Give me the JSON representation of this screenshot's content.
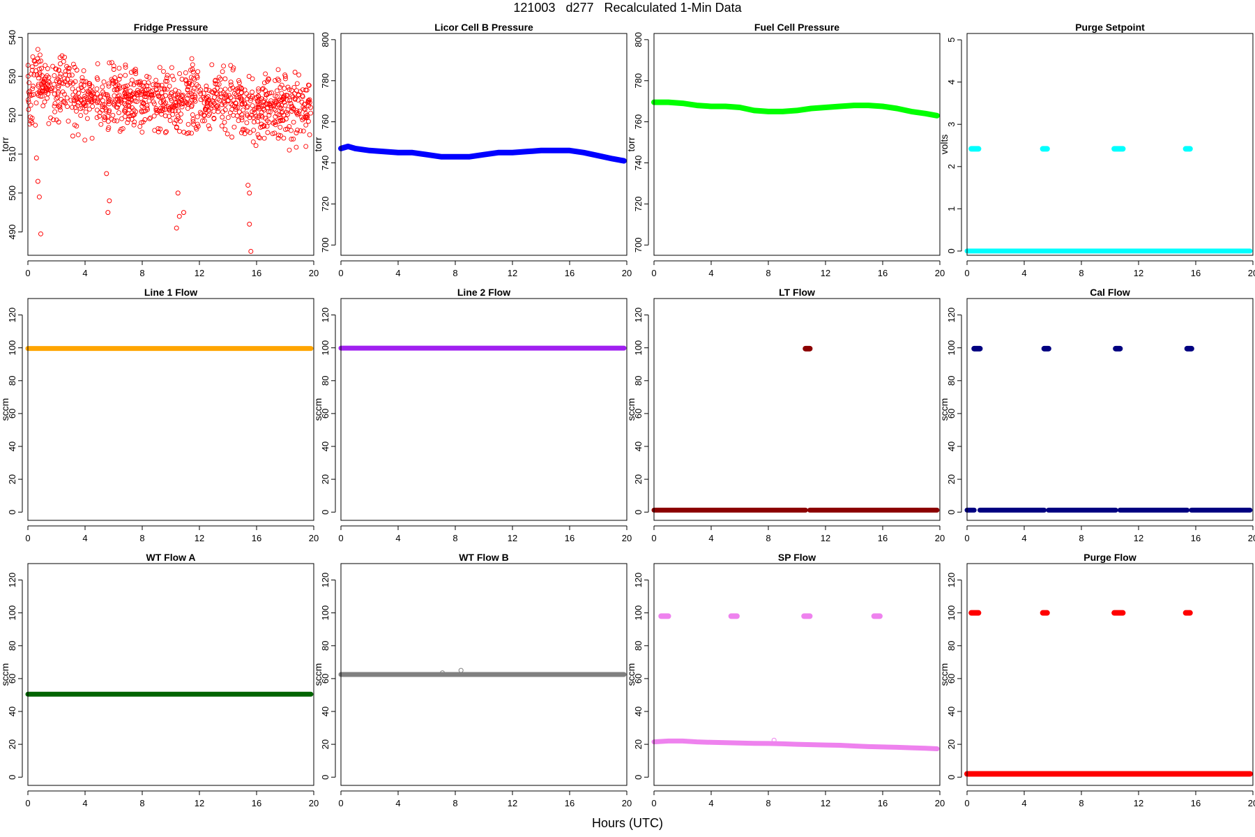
{
  "figure": {
    "title": "121003   d277   Recalculated 1-Min Data",
    "xlabel": "Hours (UTC)"
  },
  "chart_data": [
    {
      "type": "scatter",
      "title": "Fridge Pressure",
      "ylabel": "torr",
      "color": "#ff0000",
      "marker": "open",
      "xlim": [
        0,
        20
      ],
      "ylim": [
        484,
        541
      ],
      "xticks": [
        0,
        4,
        8,
        12,
        16,
        20
      ],
      "yticks": [
        490,
        500,
        510,
        520,
        530,
        540
      ],
      "series": [
        {
          "pattern": "noise",
          "x": [
            0,
            19.8
          ],
          "center": 524,
          "spread": 5,
          "seed": 11,
          "count": 1000
        },
        {
          "pattern": "points",
          "values": [
            [
              0.6,
              509
            ],
            [
              0.7,
              503
            ],
            [
              0.8,
              499
            ],
            [
              0.9,
              489.5
            ],
            [
              5.6,
              495
            ],
            [
              5.7,
              498
            ],
            [
              5.5,
              505
            ],
            [
              10.4,
              491
            ],
            [
              10.6,
              494
            ],
            [
              10.9,
              495
            ],
            [
              10.5,
              500
            ],
            [
              15.4,
              502
            ],
            [
              15.5,
              492
            ],
            [
              15.6,
              485
            ],
            [
              15.5,
              500
            ]
          ]
        }
      ]
    },
    {
      "type": "scatter",
      "title": "Licor Cell B Pressure",
      "ylabel": "torr",
      "color": "#0000ff",
      "marker": "filled",
      "xlim": [
        0,
        20
      ],
      "ylim": [
        695,
        803
      ],
      "xticks": [
        0,
        4,
        8,
        12,
        16,
        20
      ],
      "yticks": [
        700,
        720,
        740,
        760,
        780,
        800
      ],
      "series": [
        {
          "pattern": "line",
          "x": [
            0,
            0.5,
            1,
            2,
            3,
            4,
            5,
            6,
            7,
            8,
            9,
            10,
            11,
            12,
            13,
            14,
            15,
            16,
            17,
            18,
            19,
            19.8
          ],
          "y": [
            747,
            748,
            747,
            746,
            745.5,
            745,
            745,
            744,
            743,
            743,
            743,
            744,
            745,
            745,
            745.5,
            746,
            746,
            746,
            745,
            743.5,
            742,
            741
          ],
          "width": 8
        }
      ]
    },
    {
      "type": "scatter",
      "title": "Fuel Cell Pressure",
      "ylabel": "torr",
      "color": "#00ff00",
      "marker": "filled",
      "xlim": [
        0,
        20
      ],
      "ylim": [
        695,
        803
      ],
      "xticks": [
        0,
        4,
        8,
        12,
        16,
        20
      ],
      "yticks": [
        700,
        720,
        740,
        760,
        780,
        800
      ],
      "series": [
        {
          "pattern": "line",
          "x": [
            0,
            1,
            2,
            3,
            4,
            5,
            6,
            7,
            8,
            9,
            10,
            11,
            12,
            13,
            14,
            15,
            16,
            17,
            18,
            19,
            19.8
          ],
          "y": [
            769.5,
            769.5,
            769,
            768,
            767.5,
            767.5,
            767,
            765.5,
            765,
            765,
            765.5,
            766.5,
            767,
            767.5,
            768,
            768,
            767.5,
            766.5,
            765,
            764,
            763
          ],
          "width": 8
        }
      ]
    },
    {
      "type": "scatter",
      "title": "Purge Setpoint",
      "ylabel": "volts",
      "color": "#00ffff",
      "marker": "filled",
      "xlim": [
        0,
        20
      ],
      "ylim": [
        -0.1,
        5.15
      ],
      "xticks": [
        0,
        4,
        8,
        12,
        16,
        20
      ],
      "yticks": [
        0,
        1,
        2,
        3,
        4,
        5
      ],
      "series": [
        {
          "pattern": "line",
          "x": [
            0,
            19.8
          ],
          "y": [
            0,
            0
          ],
          "width": 7
        },
        {
          "pattern": "segments",
          "segs": [
            [
              0.3,
              0.8,
              2.42
            ],
            [
              5.3,
              5.6,
              2.42
            ],
            [
              10.3,
              10.9,
              2.42
            ],
            [
              15.3,
              15.6,
              2.42
            ]
          ],
          "width": 8
        }
      ]
    },
    {
      "type": "scatter",
      "title": "Line 1 Flow",
      "ylabel": "sccm",
      "color": "#ffa500",
      "marker": "filled",
      "xlim": [
        0,
        20
      ],
      "ylim": [
        -5,
        130
      ],
      "xticks": [
        0,
        4,
        8,
        12,
        16,
        20
      ],
      "yticks": [
        0,
        20,
        40,
        60,
        80,
        100,
        120
      ],
      "series": [
        {
          "pattern": "line",
          "x": [
            0,
            19.8
          ],
          "y": [
            99.6,
            99.6
          ],
          "width": 7
        }
      ]
    },
    {
      "type": "scatter",
      "title": "Line 2 Flow",
      "ylabel": "sccm",
      "color": "#a020f0",
      "marker": "filled",
      "xlim": [
        0,
        20
      ],
      "ylim": [
        -5,
        130
      ],
      "xticks": [
        0,
        4,
        8,
        12,
        16,
        20
      ],
      "yticks": [
        0,
        20,
        40,
        60,
        80,
        100,
        120
      ],
      "series": [
        {
          "pattern": "line",
          "x": [
            0,
            19.8
          ],
          "y": [
            99.8,
            99.8
          ],
          "width": 7
        }
      ]
    },
    {
      "type": "scatter",
      "title": "LT Flow",
      "ylabel": "sccm",
      "color": "#8b0000",
      "marker": "filled",
      "xlim": [
        0,
        20
      ],
      "ylim": [
        -5,
        130
      ],
      "xticks": [
        0,
        4,
        8,
        12,
        16,
        20
      ],
      "yticks": [
        0,
        20,
        40,
        60,
        80,
        100,
        120
      ],
      "series": [
        {
          "pattern": "segments",
          "segs": [
            [
              0,
              10.6,
              1.2
            ],
            [
              10.9,
              19.8,
              1.2
            ]
          ],
          "width": 7
        },
        {
          "pattern": "segments",
          "segs": [
            [
              10.6,
              10.9,
              99.5
            ]
          ],
          "width": 8
        }
      ]
    },
    {
      "type": "scatter",
      "title": "Cal Flow",
      "ylabel": "sccm",
      "color": "#000080",
      "marker": "filled",
      "xlim": [
        0,
        20
      ],
      "ylim": [
        -5,
        130
      ],
      "xticks": [
        0,
        4,
        8,
        12,
        16,
        20
      ],
      "yticks": [
        0,
        20,
        40,
        60,
        80,
        100,
        120
      ],
      "series": [
        {
          "pattern": "segments",
          "segs": [
            [
              0,
              0.5,
              1.2
            ],
            [
              0.9,
              5.4,
              1.2
            ],
            [
              5.7,
              10.4,
              1.2
            ],
            [
              10.7,
              15.4,
              1.2
            ],
            [
              15.7,
              19.8,
              1.2
            ]
          ],
          "width": 7
        },
        {
          "pattern": "segments",
          "segs": [
            [
              0.5,
              0.9,
              99.5
            ],
            [
              5.4,
              5.7,
              99.5
            ],
            [
              10.4,
              10.7,
              99.5
            ],
            [
              15.4,
              15.7,
              99.5
            ]
          ],
          "width": 8
        }
      ]
    },
    {
      "type": "scatter",
      "title": "WT Flow A",
      "ylabel": "sccm",
      "color": "#006400",
      "marker": "filled",
      "xlim": [
        0,
        20
      ],
      "ylim": [
        -5,
        130
      ],
      "xticks": [
        0,
        4,
        8,
        12,
        16,
        20
      ],
      "yticks": [
        0,
        20,
        40,
        60,
        80,
        100,
        120
      ],
      "series": [
        {
          "pattern": "line",
          "x": [
            0,
            19.8
          ],
          "y": [
            50.5,
            50.5
          ],
          "width": 7
        }
      ]
    },
    {
      "type": "scatter",
      "title": "WT Flow B",
      "ylabel": "sccm",
      "color": "#808080",
      "marker": "filled",
      "xlim": [
        0,
        20
      ],
      "ylim": [
        -5,
        130
      ],
      "xticks": [
        0,
        4,
        8,
        12,
        16,
        20
      ],
      "yticks": [
        0,
        20,
        40,
        60,
        80,
        100,
        120
      ],
      "series": [
        {
          "pattern": "line",
          "x": [
            0,
            19.8
          ],
          "y": [
            62.5,
            62.5
          ],
          "width": 7
        },
        {
          "pattern": "points",
          "values": [
            [
              7.1,
              63.5
            ],
            [
              8.4,
              65
            ]
          ],
          "hollow": true
        }
      ]
    },
    {
      "type": "scatter",
      "title": "SP Flow",
      "ylabel": "sccm",
      "color": "#ee82ee",
      "marker": "filled",
      "xlim": [
        0,
        20
      ],
      "ylim": [
        -5,
        130
      ],
      "xticks": [
        0,
        4,
        8,
        12,
        16,
        20
      ],
      "yticks": [
        0,
        20,
        40,
        60,
        80,
        100,
        120
      ],
      "series": [
        {
          "pattern": "line",
          "x": [
            0,
            1,
            2,
            3,
            4,
            5,
            6,
            7,
            8,
            9,
            10,
            11,
            12,
            13,
            14,
            15,
            16,
            17,
            18,
            19,
            19.8
          ],
          "y": [
            21.5,
            22,
            22,
            21.5,
            21.2,
            21,
            20.8,
            20.6,
            20.5,
            20.3,
            20,
            19.8,
            19.6,
            19.4,
            19,
            18.6,
            18.4,
            18.2,
            17.9,
            17.6,
            17.3
          ],
          "width": 7
        },
        {
          "pattern": "segments",
          "segs": [
            [
              0.5,
              1.0,
              98
            ],
            [
              5.4,
              5.8,
              98
            ],
            [
              10.5,
              10.9,
              98
            ],
            [
              15.4,
              15.8,
              98
            ]
          ],
          "width": 8
        },
        {
          "pattern": "points",
          "values": [
            [
              8.4,
              22.5
            ]
          ],
          "hollow": true
        }
      ]
    },
    {
      "type": "scatter",
      "title": "Purge Flow",
      "ylabel": "sccm",
      "color": "#ff0000",
      "marker": "open",
      "xlim": [
        0,
        20
      ],
      "ylim": [
        -5,
        130
      ],
      "xticks": [
        0,
        4,
        8,
        12,
        16,
        20
      ],
      "yticks": [
        0,
        20,
        40,
        60,
        80,
        100,
        120
      ],
      "series": [
        {
          "pattern": "line",
          "x": [
            0,
            19.8
          ],
          "y": [
            2,
            2
          ],
          "width": 8
        },
        {
          "pattern": "segments",
          "segs": [
            [
              0.3,
              0.8,
              100
            ],
            [
              5.3,
              5.6,
              100
            ],
            [
              10.3,
              10.9,
              100
            ],
            [
              15.3,
              15.6,
              100
            ]
          ],
          "width": 8
        }
      ]
    }
  ]
}
